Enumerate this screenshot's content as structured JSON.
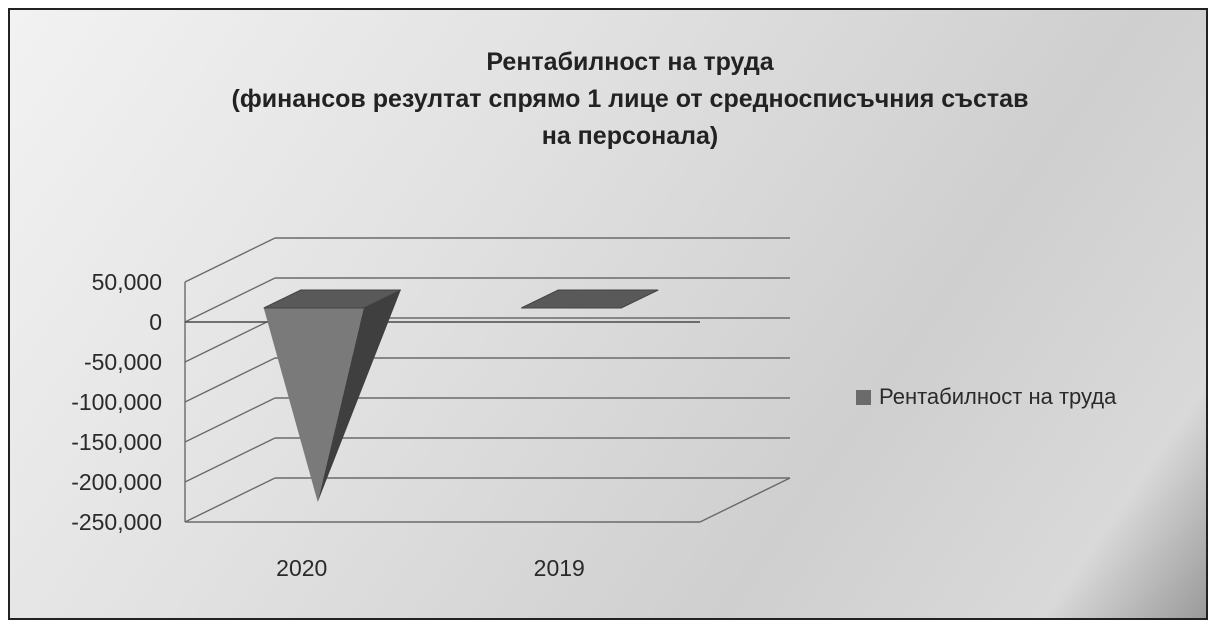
{
  "chart_data": {
    "type": "bar",
    "title_lines": [
      "Рентабилност на труда",
      "(финансов резултат спрямо 1 лице от средносписъчния състав",
      "на персонала)"
    ],
    "categories": [
      "2020",
      "2019"
    ],
    "series": [
      {
        "name": "Рентабилност на труда",
        "values": [
          -225000,
          3000
        ]
      }
    ],
    "y_ticks": [
      "50,000",
      "0",
      "-50,000",
      "-100,000",
      "-150,000",
      "-200,000",
      "-250,000"
    ],
    "ylim": [
      -250000,
      50000
    ],
    "grid": true,
    "legend_position": "right",
    "style": "3d-cone",
    "colors": {
      "bar_front": "#7a7a7a",
      "bar_side": "#3f3f3f",
      "bar_top": "#595959",
      "grid": "#6a6a6a"
    }
  }
}
